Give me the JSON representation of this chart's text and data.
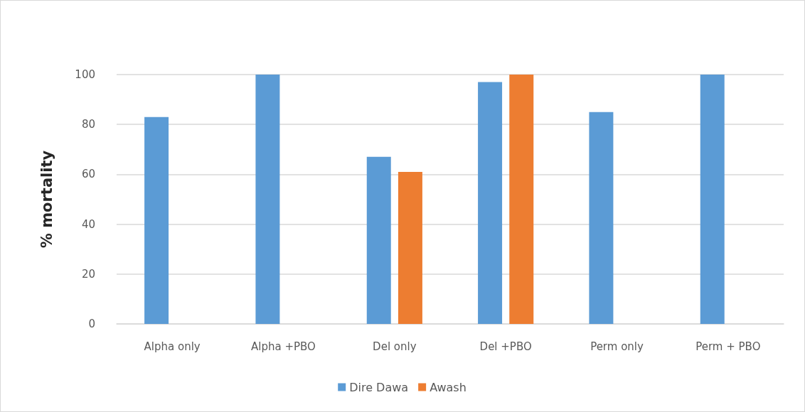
{
  "chart_data": {
    "type": "bar",
    "ylabel": "% mortality",
    "categories": [
      "Alpha only",
      "Alpha +PBO",
      "Del only",
      "Del +PBO",
      "Perm only",
      "Perm + PBO"
    ],
    "series": [
      {
        "name": "Dire Dawa",
        "color": "#5b9bd5",
        "values": [
          83,
          100,
          67,
          97,
          85,
          100
        ]
      },
      {
        "name": "Awash",
        "color": "#ed7d31",
        "values": [
          null,
          null,
          61,
          100,
          null,
          null
        ]
      }
    ],
    "ylim": [
      0,
      100
    ],
    "yticks": [
      0,
      20,
      40,
      60,
      80,
      100
    ],
    "grid": "y",
    "legend": "bottom"
  }
}
